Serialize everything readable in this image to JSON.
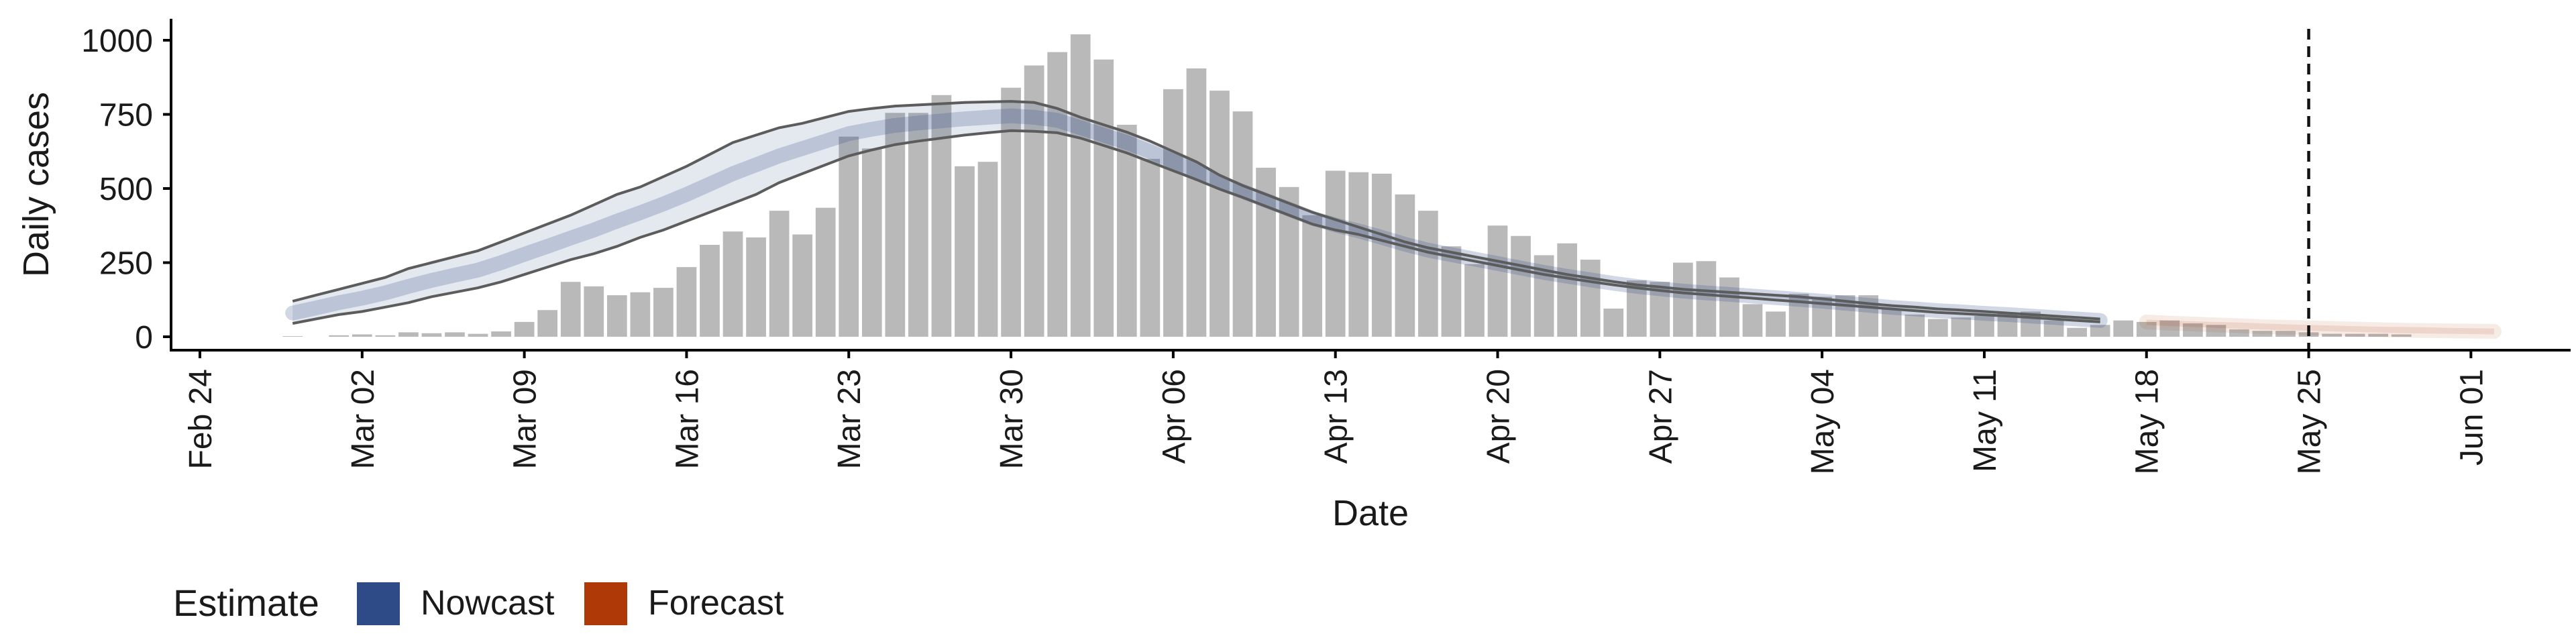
{
  "chart_data": {
    "type": "bar",
    "xlabel": "Date",
    "ylabel": "Daily cases",
    "ylim": [
      0,
      1050
    ],
    "y_ticks": [
      0,
      250,
      500,
      750,
      1000
    ],
    "x_range": [
      "2020-02-24",
      "2020-06-04"
    ],
    "x_ticks": [
      {
        "date": "2020-02-24",
        "label": "Feb 24"
      },
      {
        "date": "2020-03-02",
        "label": "Mar 02"
      },
      {
        "date": "2020-03-09",
        "label": "Mar 09"
      },
      {
        "date": "2020-03-16",
        "label": "Mar 16"
      },
      {
        "date": "2020-03-23",
        "label": "Mar 23"
      },
      {
        "date": "2020-03-30",
        "label": "Mar 30"
      },
      {
        "date": "2020-04-06",
        "label": "Apr 06"
      },
      {
        "date": "2020-04-13",
        "label": "Apr 13"
      },
      {
        "date": "2020-04-20",
        "label": "Apr 20"
      },
      {
        "date": "2020-04-27",
        "label": "Apr 27"
      },
      {
        "date": "2020-05-04",
        "label": "May 04"
      },
      {
        "date": "2020-05-11",
        "label": "May 11"
      },
      {
        "date": "2020-05-18",
        "label": "May 18"
      },
      {
        "date": "2020-05-25",
        "label": "May 25"
      },
      {
        "date": "2020-06-01",
        "label": "Jun 01"
      }
    ],
    "grid": false,
    "vline_date": "2020-05-25",
    "bars": {
      "start_date": "2020-02-28",
      "color": "#b9b9b9",
      "values": [
        2,
        0,
        5,
        8,
        5,
        15,
        12,
        15,
        10,
        18,
        50,
        90,
        185,
        170,
        140,
        150,
        165,
        235,
        310,
        355,
        335,
        425,
        345,
        435,
        675,
        635,
        755,
        755,
        815,
        575,
        590,
        840,
        915,
        960,
        1020,
        935,
        715,
        600,
        835,
        905,
        830,
        760,
        570,
        505,
        410,
        560,
        555,
        550,
        480,
        425,
        305,
        245,
        375,
        340,
        275,
        315,
        260,
        95,
        190,
        185,
        250,
        255,
        200,
        110,
        85,
        145,
        135,
        140,
        140,
        95,
        75,
        60,
        65,
        70,
        80,
        85,
        55,
        30,
        40,
        55,
        50,
        55,
        45,
        40,
        25,
        20,
        20,
        15,
        10,
        10,
        10,
        8
      ]
    },
    "series": [
      {
        "name": "Nowcast",
        "color": "#2e4a87",
        "start_date": "2020-02-28",
        "upper": [
          120,
          140,
          160,
          180,
          200,
          230,
          250,
          270,
          290,
          320,
          350,
          380,
          410,
          445,
          480,
          505,
          540,
          575,
          615,
          655,
          680,
          705,
          720,
          740,
          760,
          770,
          778,
          782,
          786,
          790,
          792,
          794,
          790,
          770,
          740,
          715,
          690,
          660,
          625,
          590,
          545,
          510,
          480,
          450,
          420,
          395,
          370,
          345,
          320,
          300,
          285,
          270,
          255,
          240,
          225,
          210,
          198,
          186,
          175,
          168,
          160,
          155,
          150,
          145,
          140,
          135,
          128,
          120,
          112,
          105,
          100,
          94,
          90,
          85,
          80,
          75,
          70,
          65,
          60
        ],
        "lower": [
          45,
          60,
          75,
          85,
          100,
          115,
          135,
          150,
          165,
          185,
          210,
          235,
          260,
          280,
          305,
          335,
          360,
          390,
          420,
          450,
          480,
          520,
          550,
          580,
          610,
          630,
          648,
          660,
          670,
          680,
          688,
          695,
          693,
          688,
          670,
          645,
          620,
          590,
          560,
          530,
          498,
          470,
          440,
          410,
          380,
          360,
          345,
          325,
          305,
          285,
          270,
          255,
          240,
          225,
          210,
          198,
          186,
          175,
          165,
          156,
          148,
          142,
          136,
          130,
          124,
          118,
          112,
          106,
          100,
          94,
          88,
          82,
          78,
          74,
          70,
          65,
          60,
          55,
          50
        ],
        "median": [
          80,
          97,
          115,
          130,
          148,
          170,
          190,
          208,
          225,
          250,
          278,
          305,
          333,
          360,
          390,
          418,
          448,
          480,
          515,
          550,
          580,
          610,
          635,
          660,
          685,
          700,
          713,
          721,
          728,
          735,
          740,
          745,
          740,
          730,
          705,
          680,
          655,
          625,
          592,
          560,
          520,
          490,
          460,
          430,
          400,
          377,
          357,
          335,
          312,
          292,
          277,
          262,
          247,
          232,
          217,
          204,
          192,
          180,
          170,
          162,
          154,
          148,
          143,
          137,
          132,
          126,
          120,
          113,
          106,
          99,
          94,
          88,
          84,
          79,
          75,
          70,
          65,
          60,
          55
        ]
      },
      {
        "name": "Forecast",
        "color": "#b03a07",
        "start_date": "2020-05-18",
        "upper": [
          58,
          55,
          52,
          50,
          48,
          45,
          42,
          40,
          38,
          36,
          34,
          33,
          32,
          30,
          29,
          28
        ],
        "lower": [
          40,
          36,
          33,
          30,
          27,
          24,
          22,
          20,
          18,
          16,
          14,
          12,
          11,
          10,
          9,
          8
        ],
        "median": [
          50,
          46,
          43,
          40,
          37,
          34,
          32,
          30,
          28,
          26,
          24,
          22,
          21,
          20,
          19,
          18
        ]
      }
    ],
    "legend": {
      "title": "Estimate",
      "placement": "bottom-left",
      "entries": [
        {
          "label": "Nowcast",
          "color": "#2e4a87"
        },
        {
          "label": "Forecast",
          "color": "#b03a07"
        }
      ]
    }
  }
}
